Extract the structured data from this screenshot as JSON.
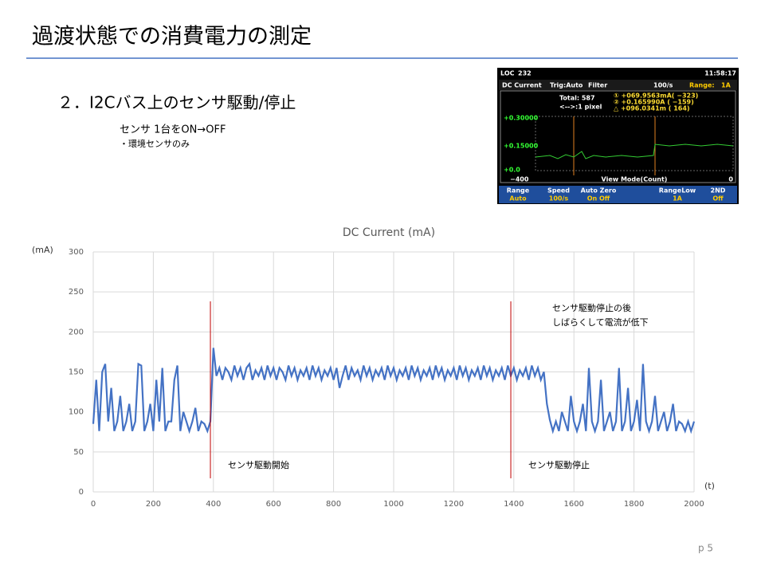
{
  "header": {
    "title": "過渡状態での消費電力の測定"
  },
  "section": {
    "heading": "２．I2Cバス上のセンサ駆動/停止",
    "detail": "センサ 1台をON→OFF",
    "note": "・環境センサのみ"
  },
  "instrument": {
    "status": [
      "LOC",
      "232",
      "11:58:17"
    ],
    "tabs": [
      "DC Current",
      "Trig:Auto",
      "Filter",
      "100/s",
      "Range:",
      "1A"
    ],
    "readout": [
      "Total:   587",
      "<-->:1 pixel"
    ],
    "markers": [
      "① +069.9563mA( −323)",
      "② +0.165990A   ( −159)",
      "△ +096.0341m   (  164)"
    ],
    "yaxis": [
      "+0.30000",
      "+0.15000",
      "+0.0"
    ],
    "xaxis": [
      "−400",
      "View Mode(Count)",
      "0"
    ],
    "softkeys": [
      [
        "Range",
        "Auto"
      ],
      [
        "Speed",
        "100/s"
      ],
      [
        "Auto Zero",
        "On  Off"
      ],
      [
        "RangeLow",
        "1A"
      ],
      [
        "2ND",
        "Off"
      ]
    ]
  },
  "chart_data": {
    "type": "line",
    "title": "DC Current (mA)",
    "y_label": "(mA)",
    "x_label": "(t)",
    "color": "#4472c4",
    "grid": true,
    "xlim": [
      0,
      2000
    ],
    "xticks": [
      0,
      200,
      400,
      600,
      800,
      1000,
      1200,
      1400,
      1600,
      1800,
      2000
    ],
    "ylim": [
      0,
      300
    ],
    "yticks": [
      0,
      50,
      100,
      150,
      200,
      250,
      300
    ],
    "x": [
      0,
      10,
      20,
      30,
      40,
      50,
      60,
      70,
      80,
      90,
      100,
      110,
      120,
      130,
      140,
      150,
      160,
      170,
      180,
      190,
      200,
      210,
      220,
      230,
      240,
      250,
      260,
      270,
      280,
      290,
      300,
      310,
      320,
      330,
      340,
      350,
      360,
      370,
      380,
      390,
      400,
      410,
      420,
      430,
      440,
      450,
      460,
      470,
      480,
      490,
      500,
      510,
      520,
      530,
      540,
      550,
      560,
      570,
      580,
      590,
      600,
      610,
      620,
      630,
      640,
      650,
      660,
      670,
      680,
      690,
      700,
      710,
      720,
      730,
      740,
      750,
      760,
      770,
      780,
      790,
      800,
      810,
      820,
      830,
      840,
      850,
      860,
      870,
      880,
      890,
      900,
      910,
      920,
      930,
      940,
      950,
      960,
      970,
      980,
      990,
      1000,
      1010,
      1020,
      1030,
      1040,
      1050,
      1060,
      1070,
      1080,
      1090,
      1100,
      1110,
      1120,
      1130,
      1140,
      1150,
      1160,
      1170,
      1180,
      1190,
      1200,
      1210,
      1220,
      1230,
      1240,
      1250,
      1260,
      1270,
      1280,
      1290,
      1300,
      1310,
      1320,
      1330,
      1340,
      1350,
      1360,
      1370,
      1380,
      1390,
      1400,
      1410,
      1420,
      1430,
      1440,
      1450,
      1460,
      1470,
      1480,
      1490,
      1500,
      1510,
      1520,
      1530,
      1540,
      1550,
      1560,
      1570,
      1580,
      1590,
      1600,
      1610,
      1620,
      1630,
      1640,
      1650,
      1660,
      1670,
      1680,
      1690,
      1700,
      1710,
      1720,
      1730,
      1740,
      1750,
      1760,
      1770,
      1780,
      1790,
      1800,
      1810,
      1820,
      1830,
      1840,
      1850,
      1860,
      1870,
      1880,
      1890,
      1900,
      1910,
      1920,
      1930,
      1940,
      1950,
      1960,
      1970,
      1980,
      1990,
      2000
    ],
    "values": [
      85,
      140,
      76,
      150,
      160,
      88,
      130,
      76,
      88,
      120,
      76,
      88,
      110,
      76,
      88,
      160,
      158,
      76,
      88,
      110,
      76,
      140,
      88,
      155,
      76,
      88,
      88,
      140,
      158,
      76,
      100,
      88,
      76,
      88,
      105,
      76,
      88,
      85,
      76,
      88,
      180,
      145,
      155,
      140,
      155,
      150,
      140,
      158,
      145,
      155,
      140,
      155,
      160,
      140,
      152,
      145,
      155,
      140,
      158,
      145,
      155,
      140,
      155,
      150,
      140,
      158,
      145,
      155,
      140,
      152,
      145,
      155,
      140,
      158,
      145,
      155,
      140,
      152,
      145,
      155,
      140,
      155,
      130,
      145,
      158,
      140,
      155,
      145,
      152,
      140,
      158,
      145,
      155,
      140,
      152,
      145,
      155,
      140,
      158,
      145,
      155,
      140,
      152,
      145,
      155,
      140,
      158,
      145,
      155,
      140,
      152,
      145,
      155,
      140,
      158,
      145,
      155,
      140,
      152,
      145,
      155,
      140,
      158,
      145,
      155,
      140,
      152,
      145,
      155,
      140,
      158,
      145,
      155,
      140,
      152,
      145,
      155,
      140,
      158,
      145,
      155,
      140,
      152,
      145,
      155,
      140,
      158,
      145,
      155,
      140,
      150,
      110,
      90,
      76,
      88,
      76,
      100,
      88,
      76,
      120,
      88,
      76,
      88,
      110,
      76,
      155,
      88,
      76,
      88,
      140,
      76,
      88,
      100,
      76,
      88,
      155,
      76,
      88,
      130,
      76,
      88,
      115,
      76,
      160,
      88,
      76,
      88,
      120,
      76,
      88,
      100,
      76,
      88,
      110,
      76,
      88,
      85,
      76,
      88,
      76,
      88
    ],
    "annotations": [
      {
        "x": 390,
        "text": "センサ駆動開始"
      },
      {
        "x": 1390,
        "text": "センサ駆動停止"
      }
    ],
    "note": [
      "センサ駆動停止の後",
      "しばらくして電流が低下"
    ]
  },
  "footer": {
    "page": "p 5"
  }
}
